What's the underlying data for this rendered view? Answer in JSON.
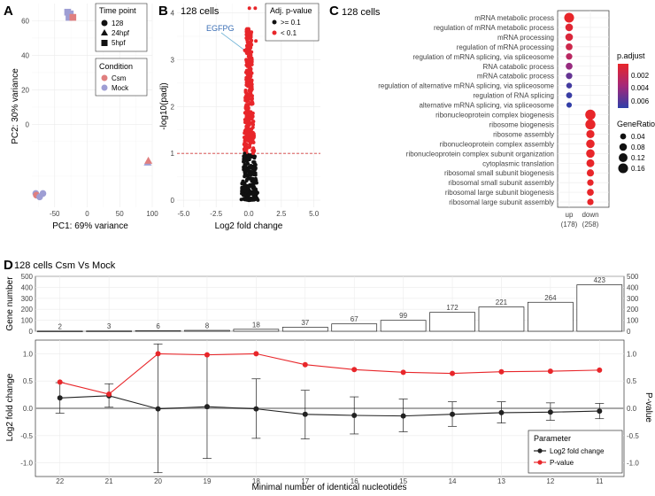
{
  "panels": {
    "A": "A",
    "B": "B",
    "C": "C",
    "D": "D"
  },
  "colors": {
    "csm": "#e07f7f",
    "mock": "#9e9ed4",
    "up": "#e8262a",
    "ns": "#111111",
    "pval": "#e8262a",
    "lfc": "#222222",
    "egfpg": "#3a6eb5"
  },
  "chart_data": [
    {
      "type": "scatter",
      "panel": "A",
      "xlabel": "PC1: 69% variance",
      "ylabel": "PC2: 30% variance",
      "x_ticks": [
        "-50",
        "0",
        "50",
        "100"
      ],
      "y_ticks": [
        "0",
        "20",
        "40",
        "60"
      ],
      "xlim": [
        -85,
        100
      ],
      "ylim": [
        -48,
        70
      ],
      "legend_timepoint": {
        "title": "Time point",
        "items": [
          "128",
          "24hpf",
          "5hpf"
        ]
      },
      "legend_condition": {
        "title": "Condition",
        "items": [
          "Csm",
          "Mock"
        ]
      },
      "points": [
        {
          "x": -79,
          "y": -40,
          "shape": "128",
          "condition": "Mock"
        },
        {
          "x": -78,
          "y": -41,
          "shape": "128",
          "condition": "Csm"
        },
        {
          "x": -73,
          "y": -42,
          "shape": "128",
          "condition": "Mock"
        },
        {
          "x": -68,
          "y": -40,
          "shape": "128",
          "condition": "Mock"
        },
        {
          "x": -30,
          "y": 65,
          "shape": "5hpf",
          "condition": "Mock"
        },
        {
          "x": -28,
          "y": 62,
          "shape": "5hpf",
          "condition": "Mock"
        },
        {
          "x": -26,
          "y": 64,
          "shape": "5hpf",
          "condition": "Mock"
        },
        {
          "x": -22,
          "y": 62,
          "shape": "5hpf",
          "condition": "Csm"
        },
        {
          "x": 93,
          "y": -22,
          "shape": "24hpf",
          "condition": "Mock"
        },
        {
          "x": 94,
          "y": -21,
          "shape": "24hpf",
          "condition": "Csm"
        }
      ]
    },
    {
      "type": "scatter",
      "panel": "B",
      "title": "128 cells",
      "xlabel": "Log2 fold change",
      "ylabel": "-log10(padj)",
      "x_ticks": [
        "-5.0",
        "-2.5",
        "0.0",
        "2.5",
        "5.0"
      ],
      "y_ticks": [
        "0",
        "1",
        "2",
        "3",
        "4"
      ],
      "xlim": [
        -5.5,
        5.5
      ],
      "ylim": [
        -0.15,
        4.2
      ],
      "threshold": 1,
      "legend": {
        "title": "Adj. p-value",
        "items": [
          ">= 0.1",
          "< 0.1"
        ]
      },
      "annotation": "EGFPG",
      "annotation_point": {
        "x": -0.3,
        "y": 3.2
      }
    },
    {
      "type": "scatter",
      "panel": "C",
      "title": "128 cells",
      "categories_x": [
        "up",
        "down"
      ],
      "counts": [
        "(178)",
        "(258)"
      ],
      "terms": [
        "mRNA metabolic process",
        "regulation of mRNA metabolic process",
        "mRNA processing",
        "regulation of mRNA processing",
        "regulation of mRNA splicing, via spliceosome",
        "RNA catabolic process",
        "mRNA catabolic process",
        "regulation of alternative mRNA splicing, via spliceosome",
        "regulation of RNA splicing",
        "alternative mRNA splicing, via spliceosome",
        "ribonucleoprotein complex biogenesis",
        "ribosome biogenesis",
        "ribosome assembly",
        "ribonucleoprotein complex assembly",
        "ribonucleoprotein complex subunit organization",
        "cytoplasmic translation",
        "ribosomal small subunit biogenesis",
        "ribosomal small subunit assembly",
        "ribosomal large subunit biogenesis",
        "ribosomal large subunit assembly"
      ],
      "dots": [
        {
          "term": 0,
          "col": 0,
          "ratio": 0.16,
          "padj": 0.0001
        },
        {
          "term": 1,
          "col": 0,
          "ratio": 0.08,
          "padj": 0.0005
        },
        {
          "term": 2,
          "col": 0,
          "ratio": 0.08,
          "padj": 0.0008
        },
        {
          "term": 3,
          "col": 0,
          "ratio": 0.06,
          "padj": 0.0015
        },
        {
          "term": 4,
          "col": 0,
          "ratio": 0.05,
          "padj": 0.0025
        },
        {
          "term": 5,
          "col": 0,
          "ratio": 0.06,
          "padj": 0.004
        },
        {
          "term": 6,
          "col": 0,
          "ratio": 0.05,
          "padj": 0.0055
        },
        {
          "term": 7,
          "col": 0,
          "ratio": 0.035,
          "padj": 0.0065
        },
        {
          "term": 8,
          "col": 0,
          "ratio": 0.04,
          "padj": 0.0068
        },
        {
          "term": 9,
          "col": 0,
          "ratio": 0.03,
          "padj": 0.007
        },
        {
          "term": 10,
          "col": 1,
          "ratio": 0.18,
          "padj": 0.0001
        },
        {
          "term": 11,
          "col": 1,
          "ratio": 0.17,
          "padj": 0.0001
        },
        {
          "term": 12,
          "col": 1,
          "ratio": 0.1,
          "padj": 0.0001
        },
        {
          "term": 13,
          "col": 1,
          "ratio": 0.11,
          "padj": 0.0001
        },
        {
          "term": 14,
          "col": 1,
          "ratio": 0.11,
          "padj": 0.0001
        },
        {
          "term": 15,
          "col": 1,
          "ratio": 0.09,
          "padj": 0.0001
        },
        {
          "term": 16,
          "col": 1,
          "ratio": 0.07,
          "padj": 0.0001
        },
        {
          "term": 17,
          "col": 1,
          "ratio": 0.05,
          "padj": 0.0001
        },
        {
          "term": 18,
          "col": 1,
          "ratio": 0.06,
          "padj": 0.0001
        },
        {
          "term": 19,
          "col": 1,
          "ratio": 0.05,
          "padj": 0.0001
        }
      ],
      "legend_padj": {
        "title": "p.adjust",
        "ticks": [
          "0.002",
          "0.004",
          "0.006"
        ]
      },
      "legend_ratio": {
        "title": "GeneRatio",
        "items": [
          "0.04",
          "0.08",
          "0.12",
          "0.16"
        ],
        "values": [
          0.04,
          0.08,
          0.12,
          0.16
        ]
      }
    },
    {
      "type": "bar",
      "panel": "D",
      "title": "128 cells Csm Vs Mock",
      "ylabel": "Gene number",
      "categories": [
        "22",
        "21",
        "20",
        "19",
        "18",
        "17",
        "16",
        "15",
        "14",
        "13",
        "12",
        "11"
      ],
      "values": [
        2,
        3,
        6,
        8,
        18,
        37,
        67,
        99,
        172,
        221,
        264,
        423
      ],
      "y_ticks": [
        "0",
        "100",
        "200",
        "300",
        "400",
        "500"
      ],
      "ylim": [
        0,
        500
      ]
    },
    {
      "type": "line",
      "panel": "D",
      "xlabel": "Minimal number of identical nucleotides",
      "ylabel_left": "Log2 fold change",
      "ylabel_right": "P-value",
      "categories": [
        "22",
        "21",
        "20",
        "19",
        "18",
        "17",
        "16",
        "15",
        "14",
        "13",
        "12",
        "11"
      ],
      "y_ticks": [
        "-1.0",
        "-0.5",
        "0.0",
        "0.5",
        "1.0"
      ],
      "ylim": [
        -1.25,
        1.25
      ],
      "legend": {
        "title": "Parameter",
        "items": [
          "Log2 fold change",
          "P-value"
        ]
      },
      "series": [
        {
          "name": "Log2 fold change",
          "values": [
            0.19,
            0.23,
            -0.01,
            0.03,
            -0.01,
            -0.11,
            -0.13,
            -0.14,
            -0.11,
            -0.08,
            -0.07,
            -0.05
          ],
          "err_low": [
            -0.09,
            0.02,
            -1.18,
            -0.92,
            -0.55,
            -0.56,
            -0.47,
            -0.43,
            -0.33,
            -0.27,
            -0.22,
            -0.19
          ],
          "err_high": [
            0.47,
            0.45,
            1.18,
            0.98,
            0.54,
            0.33,
            0.21,
            0.17,
            0.12,
            0.12,
            0.1,
            0.09
          ]
        },
        {
          "name": "P-value",
          "values": [
            0.48,
            0.26,
            1.0,
            0.98,
            1.0,
            0.8,
            0.71,
            0.66,
            0.64,
            0.67,
            0.68,
            0.7
          ]
        }
      ]
    }
  ]
}
